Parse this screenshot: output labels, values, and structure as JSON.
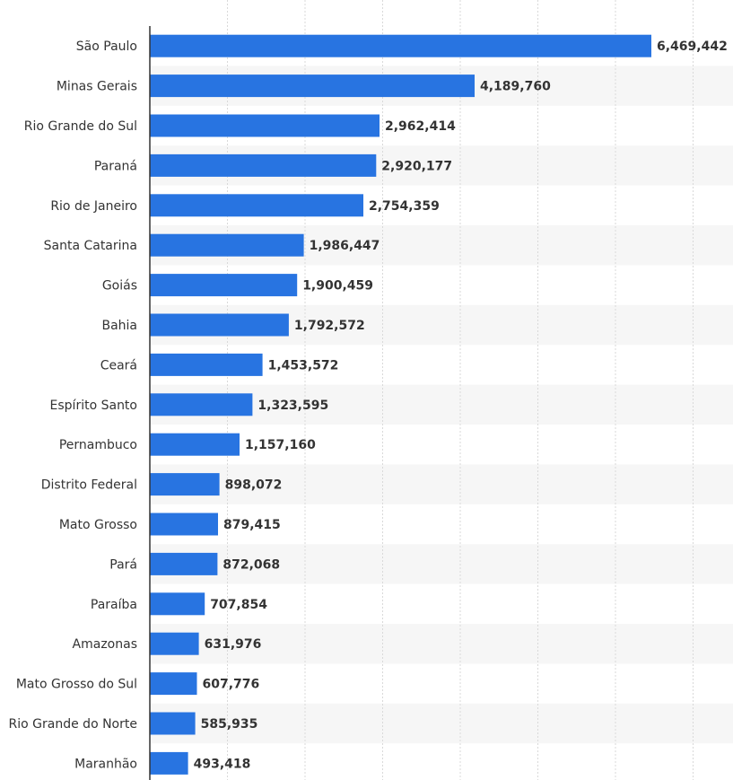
{
  "colors": {
    "bar": "#2874e1",
    "stripe": "#f6f6f6",
    "grid": "#d9d9d9",
    "axis": "#333333",
    "text": "#333333",
    "background": "#ffffff"
  },
  "chart_data": {
    "type": "bar",
    "orientation": "horizontal",
    "title": "",
    "xlabel": "",
    "ylabel": "",
    "grid": true,
    "xlim": [
      0,
      7500000
    ],
    "categories": [
      "São Paulo",
      "Minas Gerais",
      "Rio Grande do Sul",
      "Paraná",
      "Rio de Janeiro",
      "Santa Catarina",
      "Goiás",
      "Bahia",
      "Ceará",
      "Espírito Santo",
      "Pernambuco",
      "Distrito Federal",
      "Mato Grosso",
      "Pará",
      "Paraíba",
      "Amazonas",
      "Mato Grosso do Sul",
      "Rio Grande do Norte",
      "Maranhão"
    ],
    "values": [
      6469442,
      4189760,
      2962414,
      2920177,
      2754359,
      1986447,
      1900459,
      1792572,
      1453572,
      1323595,
      1157160,
      898072,
      879415,
      872068,
      707854,
      631976,
      607776,
      585935,
      493418
    ],
    "value_labels": [
      "6,469,442",
      "4,189,760",
      "2,962,414",
      "2,920,177",
      "2,754,359",
      "1,986,447",
      "1,900,459",
      "1,792,572",
      "1,453,572",
      "1,323,595",
      "1,157,160",
      "898,072",
      "879,415",
      "872,068",
      "707,854",
      "631,976",
      "607,776",
      "585,935",
      "493,418"
    ]
  }
}
